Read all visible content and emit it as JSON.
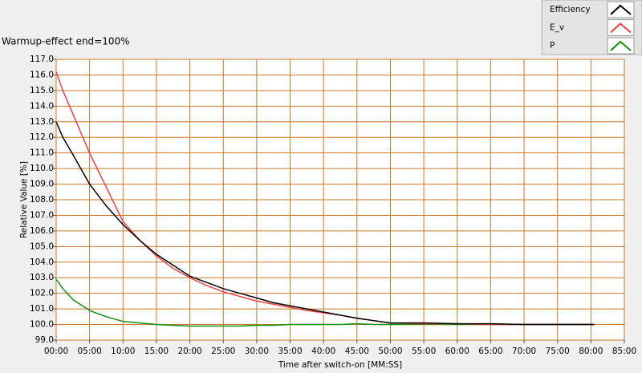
{
  "chart_data": {
    "type": "line",
    "title": "Warmup-effect end=100%",
    "x_label": "Time after switch-on [MM:SS]",
    "y_label": "Relative Value [%]",
    "x": [
      0,
      1,
      2.5,
      5,
      7.5,
      10,
      12.5,
      15,
      17.5,
      20,
      22.5,
      25,
      27.5,
      30,
      32.5,
      35,
      37.5,
      40,
      42.5,
      45,
      47.5,
      50,
      55,
      60,
      65,
      70,
      75,
      80.5
    ],
    "series": [
      {
        "name": "Efficiency",
        "color": "#000000",
        "values": [
          113.0,
          112.0,
          110.9,
          109.0,
          107.6,
          106.4,
          105.4,
          104.5,
          103.8,
          103.1,
          102.7,
          102.3,
          102.0,
          101.7,
          101.4,
          101.2,
          101.0,
          100.8,
          100.6,
          100.4,
          100.25,
          100.1,
          100.1,
          100.05,
          100.05,
          100.0,
          100.0,
          100.0
        ]
      },
      {
        "name": "E_v",
        "color": "#f04040",
        "values": [
          116.2,
          115.0,
          113.5,
          111.0,
          108.8,
          106.6,
          105.4,
          104.4,
          103.6,
          103.0,
          102.5,
          102.1,
          101.8,
          101.5,
          101.3,
          101.1,
          100.9,
          100.75,
          100.6,
          100.4,
          100.25,
          100.1,
          100.05,
          100.05,
          100.0,
          100.0,
          100.0,
          100.0
        ]
      },
      {
        "name": "P",
        "color": "#109010",
        "values": [
          102.9,
          102.3,
          101.6,
          100.9,
          100.5,
          100.2,
          100.1,
          100.0,
          99.95,
          99.9,
          99.9,
          99.9,
          99.9,
          99.95,
          99.95,
          100.0,
          100.0,
          100.0,
          100.0,
          100.05,
          100.0,
          100.0,
          100.0,
          100.0,
          100.0,
          100.0,
          100.0,
          100.0
        ]
      }
    ],
    "xlim": [
      0,
      85
    ],
    "xticks": [
      {
        "value": 0,
        "label": "00:00"
      },
      {
        "value": 5,
        "label": "05:00"
      },
      {
        "value": 10,
        "label": "10:00"
      },
      {
        "value": 15,
        "label": "15:00"
      },
      {
        "value": 20,
        "label": "20:00"
      },
      {
        "value": 25,
        "label": "25:00"
      },
      {
        "value": 30,
        "label": "30:00"
      },
      {
        "value": 35,
        "label": "35:00"
      },
      {
        "value": 40,
        "label": "40:00"
      },
      {
        "value": 45,
        "label": "45:00"
      },
      {
        "value": 50,
        "label": "50:00"
      },
      {
        "value": 55,
        "label": "55:00"
      },
      {
        "value": 60,
        "label": "60:00"
      },
      {
        "value": 65,
        "label": "65:00"
      },
      {
        "value": 70,
        "label": "70:00"
      },
      {
        "value": 75,
        "label": "75:00"
      },
      {
        "value": 80,
        "label": "80:00"
      },
      {
        "value": 85,
        "label": "85:00"
      }
    ],
    "ylim": [
      99,
      117
    ],
    "yticks": [
      {
        "value": 99,
        "label": "99.0"
      },
      {
        "value": 100,
        "label": "100.0"
      },
      {
        "value": 101,
        "label": "101.0"
      },
      {
        "value": 102,
        "label": "102.0"
      },
      {
        "value": 103,
        "label": "103.0"
      },
      {
        "value": 104,
        "label": "104.0"
      },
      {
        "value": 105,
        "label": "105.0"
      },
      {
        "value": 106,
        "label": "106.0"
      },
      {
        "value": 107,
        "label": "107.0"
      },
      {
        "value": 108,
        "label": "108.0"
      },
      {
        "value": 109,
        "label": "109.0"
      },
      {
        "value": 110,
        "label": "110.0"
      },
      {
        "value": 111,
        "label": "111.0"
      },
      {
        "value": 112,
        "label": "112.0"
      },
      {
        "value": 113,
        "label": "113.0"
      },
      {
        "value": 114,
        "label": "114.0"
      },
      {
        "value": 115,
        "label": "115.0"
      },
      {
        "value": 116,
        "label": "116.0"
      },
      {
        "value": 117,
        "label": "117.0"
      }
    ],
    "grid": true,
    "grid_color": "#c87a28",
    "legend": "top-right"
  }
}
